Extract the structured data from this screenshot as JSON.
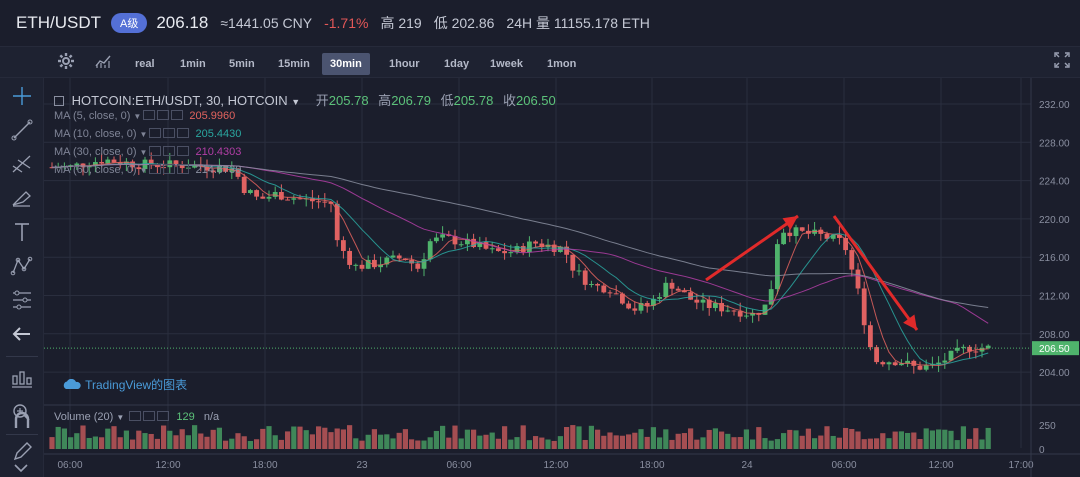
{
  "ticker": {
    "pair": "ETH/USDT",
    "badge": "A级",
    "price": "206.18",
    "cny": "≈1441.05 CNY",
    "change": "-1.71%",
    "high": "高 219",
    "low": "低 202.86",
    "volume": "24H 量 11155.178 ETH"
  },
  "toolbar": {
    "intervals": [
      "real",
      "1min",
      "5min",
      "15min",
      "30min",
      "1hour",
      "1day",
      "1week",
      "1mon"
    ],
    "active_interval": "30min"
  },
  "chart_header": {
    "symbol": "HOTCOIN:ETH/USDT, 30, HOTCOIN",
    "open_label": "开",
    "open": "205.78",
    "high_label": "高",
    "high": "206.79",
    "low_label": "低",
    "low": "205.78",
    "close_label": "收",
    "close": "206.50"
  },
  "indicators": [
    {
      "label": "MA (5, close, 0)",
      "value": "205.9960",
      "color": "#e2635e"
    },
    {
      "label": "MA (10, close, 0)",
      "value": "205.4430",
      "color": "#2aa7a0"
    },
    {
      "label": "MA (30, close, 0)",
      "value": "210.4303",
      "color": "#b23ea6"
    },
    {
      "label": "MA (60, close, 0)",
      "value": "214.6730",
      "color": "#8a8fa0"
    }
  ],
  "volume_legend": {
    "label": "Volume (20)",
    "value": "129",
    "extra": "n/a"
  },
  "watermark": "TradingView的图表",
  "colors": {
    "up": "#4fb36c",
    "down": "#e06262",
    "bg": "#1b1e2c",
    "grid": "#2a2e3e"
  },
  "chart_data": {
    "type": "candlestick",
    "price_axis_ticks": [
      "232.00",
      "228.00",
      "224.00",
      "220.00",
      "216.00",
      "212.00",
      "208.00",
      "204.00"
    ],
    "volume_axis_ticks": [
      "250",
      "0"
    ],
    "time_axis_ticks": [
      "06:00",
      "12:00",
      "18:00",
      "23",
      "06:00",
      "12:00",
      "18:00",
      "24",
      "06:00",
      "12:00",
      "17:00"
    ],
    "current_price_label": "206.50",
    "ylim": [
      201.5,
      234
    ]
  }
}
